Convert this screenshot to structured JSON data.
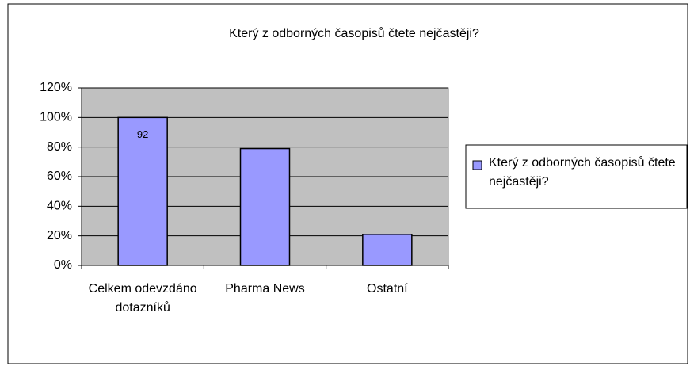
{
  "chart_data": {
    "type": "bar",
    "title": "Který z odborných časopisů čtete nejčastěji?",
    "categories": [
      "Celkem odevzdáno dotazníků",
      "Pharma News",
      "Ostatní"
    ],
    "series": [
      {
        "name": "Který z odborných časopisů čtete nejčastěji?",
        "color": "#9999ff",
        "values": [
          100,
          79,
          21
        ]
      }
    ],
    "annotation": "92",
    "ylim": [
      0,
      120
    ],
    "yticks": [
      {
        "value": 0,
        "label": "0%"
      },
      {
        "value": 20,
        "label": "20%"
      },
      {
        "value": 40,
        "label": "40%"
      },
      {
        "value": 60,
        "label": "60%"
      },
      {
        "value": 80,
        "label": "80%"
      },
      {
        "value": 100,
        "label": "100%"
      },
      {
        "value": 120,
        "label": "120%"
      }
    ],
    "grid": true,
    "plot_background": "#c0c0c0",
    "legend": "right"
  }
}
